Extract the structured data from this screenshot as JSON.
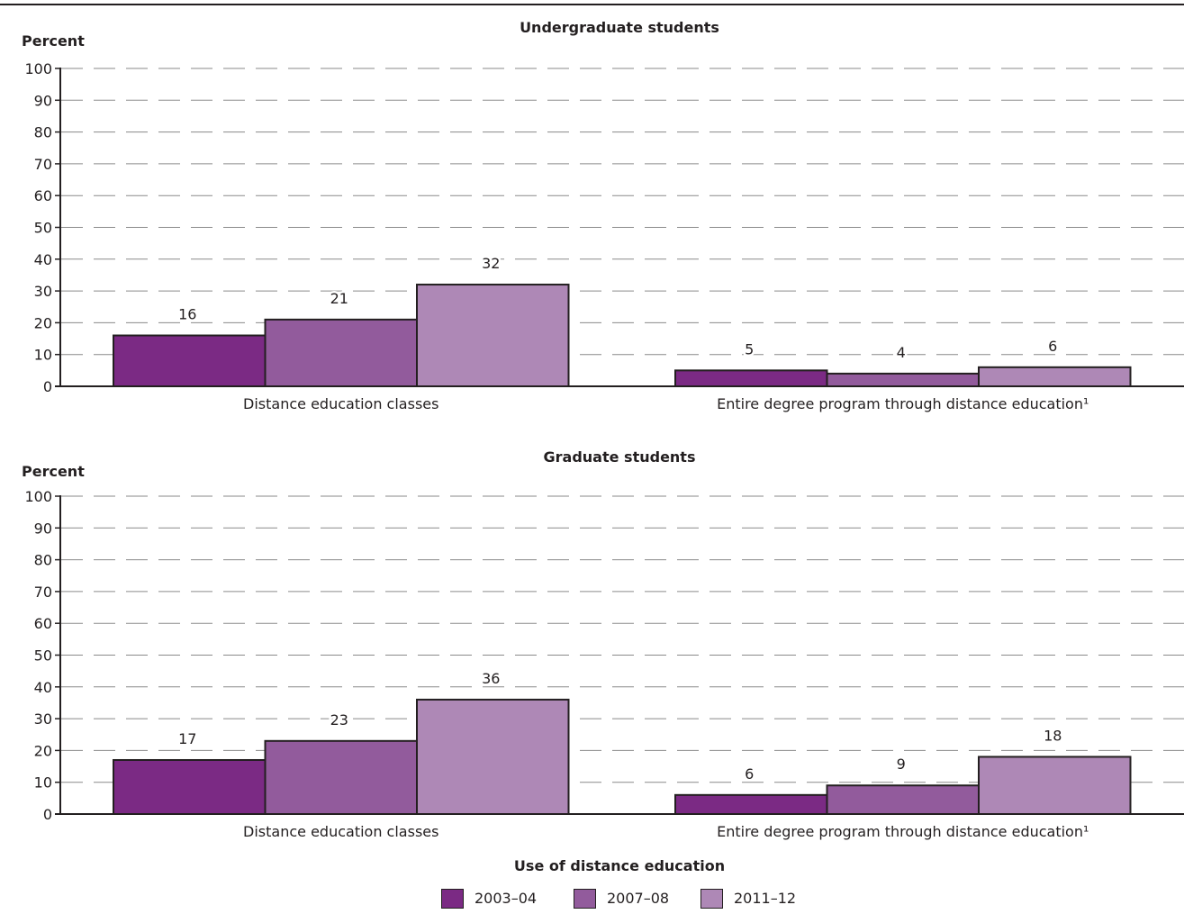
{
  "figure": {
    "xlabel": "Use of distance education",
    "legend": [
      {
        "label": "2003–04",
        "color": "#7b2a84"
      },
      {
        "label": "2007–08",
        "color": "#925b9c"
      },
      {
        "label": "2011–12",
        "color": "#ae88b6"
      }
    ]
  },
  "chart_data": [
    {
      "type": "bar",
      "title": "Undergraduate students",
      "ylabel": "Percent",
      "xlabel": "Use of distance education",
      "ylim": [
        0,
        100
      ],
      "yticks": [
        0,
        10,
        20,
        30,
        40,
        50,
        60,
        70,
        80,
        90,
        100
      ],
      "grid": true,
      "legend_position": "bottom",
      "categories": [
        "Distance education classes",
        "Entire degree program through distance education¹"
      ],
      "series": [
        {
          "name": "2003–04",
          "color": "#7b2a84",
          "values": [
            16,
            5
          ]
        },
        {
          "name": "2007–08",
          "color": "#925b9c",
          "values": [
            21,
            4
          ]
        },
        {
          "name": "2011–12",
          "color": "#ae88b6",
          "values": [
            32,
            6
          ]
        }
      ]
    },
    {
      "type": "bar",
      "title": "Graduate students",
      "ylabel": "Percent",
      "xlabel": "Use of distance education",
      "ylim": [
        0,
        100
      ],
      "yticks": [
        0,
        10,
        20,
        30,
        40,
        50,
        60,
        70,
        80,
        90,
        100
      ],
      "grid": true,
      "legend_position": "bottom",
      "categories": [
        "Distance education classes",
        "Entire degree program through distance education¹"
      ],
      "series": [
        {
          "name": "2003–04",
          "color": "#7b2a84",
          "values": [
            17,
            6
          ]
        },
        {
          "name": "2007–08",
          "color": "#925b9c",
          "values": [
            23,
            9
          ]
        },
        {
          "name": "2011–12",
          "color": "#ae88b6",
          "values": [
            36,
            18
          ]
        }
      ]
    }
  ]
}
